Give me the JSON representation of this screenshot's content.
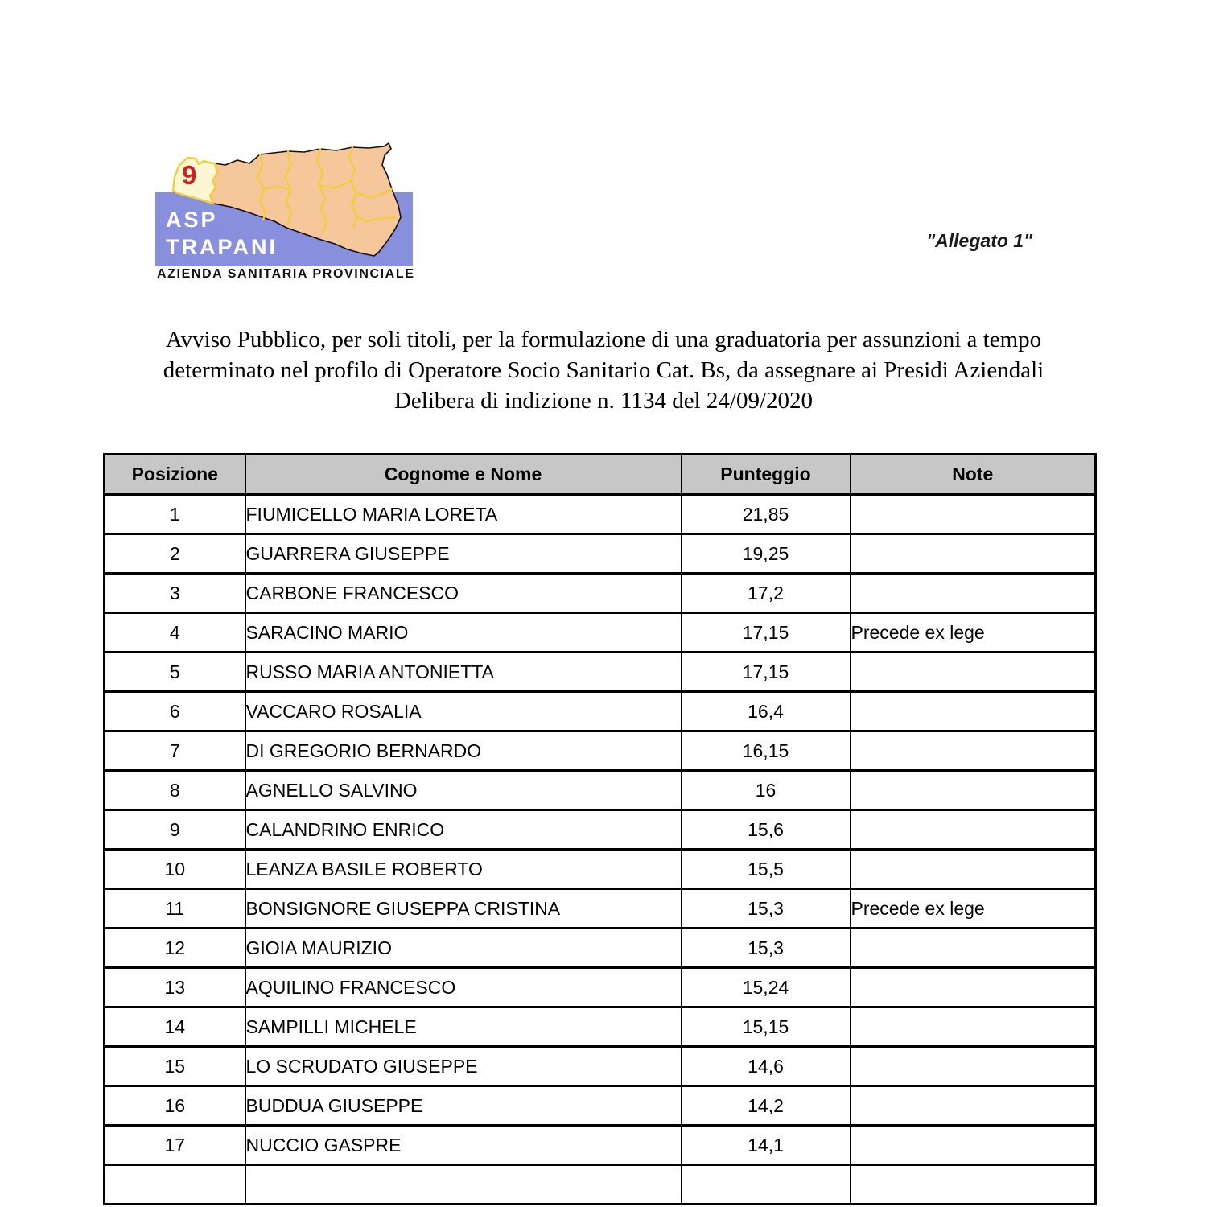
{
  "logo": {
    "org_abbr": "ASP",
    "org_name": "TRAPANI",
    "org_subtitle": "AZIENDA SANITARIA PROVINCIALE",
    "region_number": "9",
    "colors": {
      "blue": "#8890dd",
      "land": "#f5c79b",
      "province_lines": "#f2ce3c",
      "highlight": "#fcf6d3",
      "number_red": "#c7251d"
    }
  },
  "annex_label": "\"Allegato 1\"",
  "title": {
    "lines": [
      "Avviso Pubblico, per soli titoli, per la formulazione di una graduatoria per assunzioni a tempo",
      "determinato nel profilo di Operatore Socio Sanitario Cat. Bs, da assegnare ai Presidi Aziendali",
      "Delibera di indizione n. 1134 del 24/09/2020"
    ]
  },
  "table": {
    "header_bg": "#c7c7c7",
    "headers": [
      "Posizione",
      "Cognome e Nome",
      "Punteggio",
      "Note"
    ],
    "rows": [
      [
        "1",
        "FIUMICELLO MARIA LORETA",
        "21,85",
        ""
      ],
      [
        "2",
        "GUARRERA GIUSEPPE",
        "19,25",
        ""
      ],
      [
        "3",
        "CARBONE FRANCESCO",
        "17,2",
        ""
      ],
      [
        "4",
        "SARACINO MARIO",
        "17,15",
        "Precede ex lege"
      ],
      [
        "5",
        "RUSSO MARIA ANTONIETTA",
        "17,15",
        ""
      ],
      [
        "6",
        "VACCARO ROSALIA",
        "16,4",
        ""
      ],
      [
        "7",
        "DI GREGORIO BERNARDO",
        "16,15",
        ""
      ],
      [
        "8",
        "AGNELLO SALVINO",
        "16",
        ""
      ],
      [
        "9",
        "CALANDRINO ENRICO",
        "15,6",
        ""
      ],
      [
        "10",
        "LEANZA BASILE ROBERTO",
        "15,5",
        ""
      ],
      [
        "11",
        "BONSIGNORE GIUSEPPA CRISTINA",
        "15,3",
        "Precede ex lege"
      ],
      [
        "12",
        "GIOIA MAURIZIO",
        "15,3",
        ""
      ],
      [
        "13",
        "AQUILINO FRANCESCO",
        "15,24",
        ""
      ],
      [
        "14",
        "SAMPILLI MICHELE",
        "15,15",
        ""
      ],
      [
        "15",
        "LO SCRUDATO GIUSEPPE",
        "14,6",
        ""
      ],
      [
        "16",
        "BUDDUA GIUSEPPE",
        "14,2",
        ""
      ],
      [
        "17",
        "NUCCIO GASPRE",
        "14,1",
        ""
      ]
    ],
    "partial_empty_row": true
  }
}
